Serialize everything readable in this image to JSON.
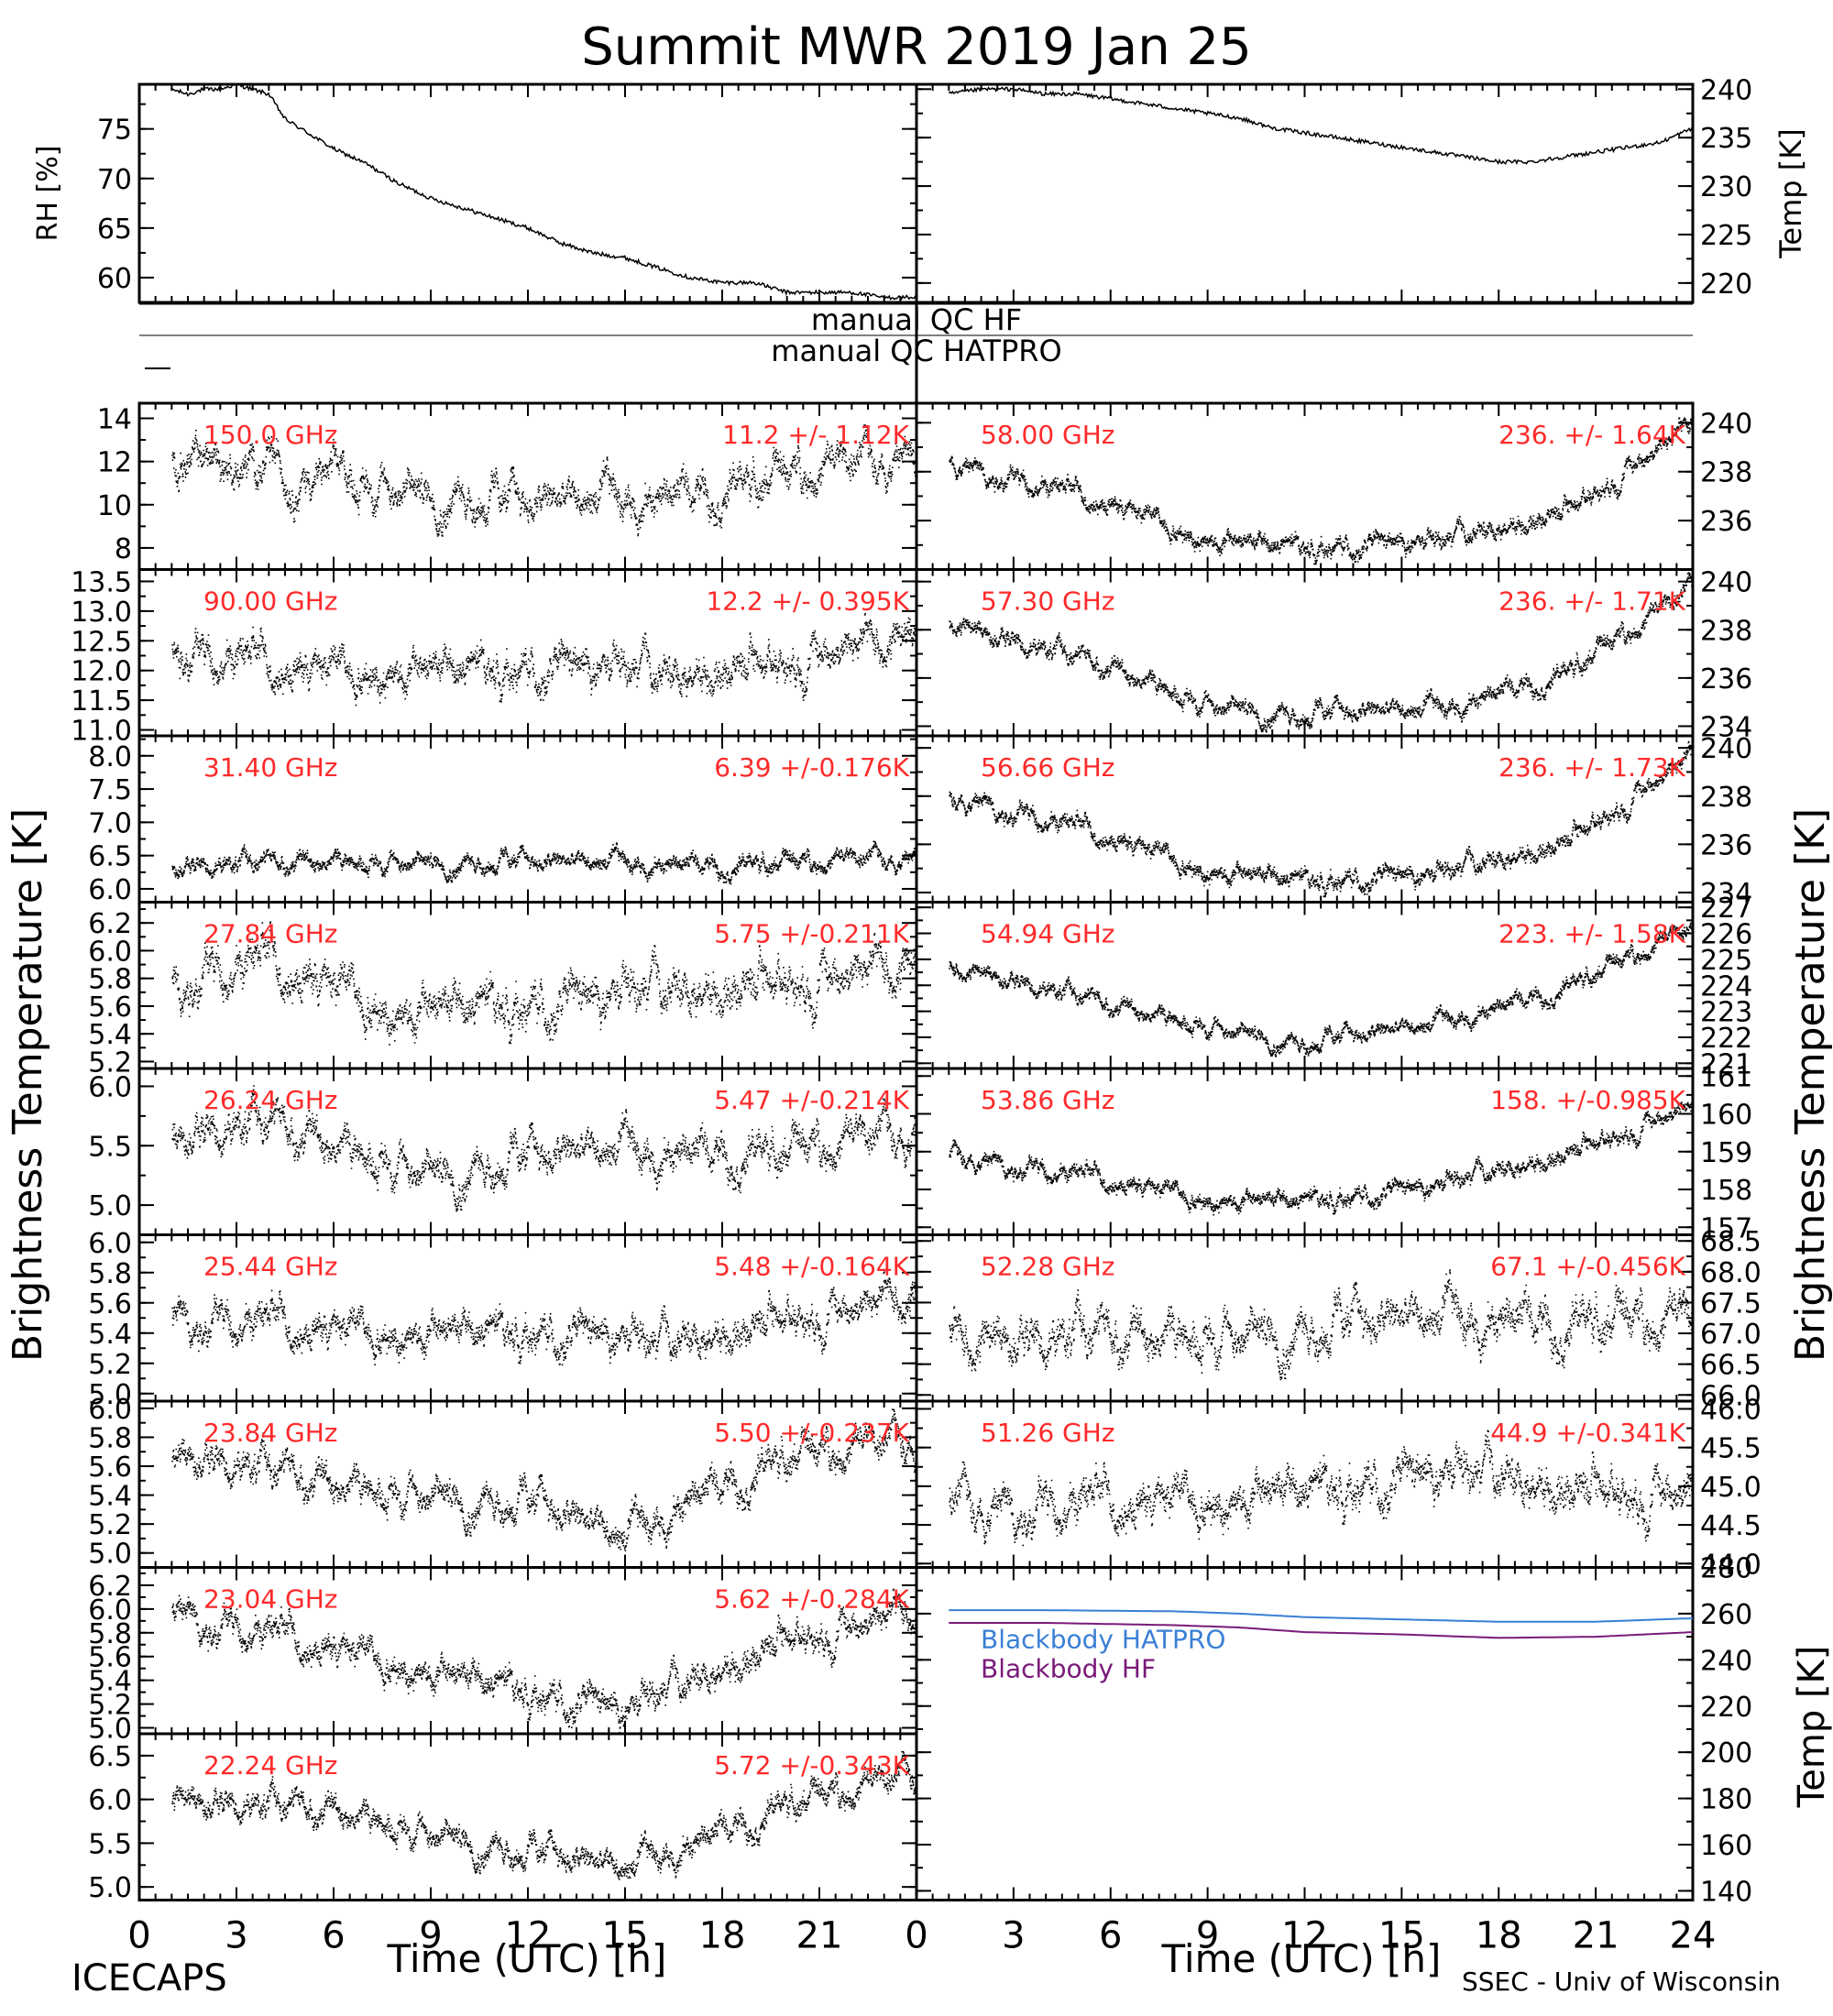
{
  "figure": {
    "title": "Summit MWR 2019 Jan 25",
    "left_ylabel": "Brightness Temperature [K]",
    "right_ylabel": "Brightness Temperature [K]",
    "xlabel": "Time (UTC) [h]",
    "footer_left": "ICECAPS",
    "footer_right": "SSEC - Univ of Wisconsin",
    "qc_hf_label": "manual QC HF",
    "qc_hatpro_label": "manual QC HATPRO",
    "x_ticks_left": [
      "0",
      "3",
      "6",
      "9",
      "12",
      "15",
      "18",
      "21"
    ],
    "x_ticks_right": [
      "0",
      "3",
      "6",
      "9",
      "12",
      "15",
      "18",
      "21",
      "24"
    ],
    "colors": {
      "axis": "#000000",
      "annotation": "#ff2a2a",
      "blackbody_hatpro": "#3a7fd6",
      "blackbody_hf": "#7a1a7a"
    }
  },
  "chart_data": [
    {
      "id": "rh",
      "type": "line",
      "ylabel": "RH [%]",
      "xlim": [
        0,
        24
      ],
      "ylim": [
        57.5,
        79.5
      ],
      "yticks": [
        60,
        65,
        70,
        75
      ],
      "x": [
        0,
        1,
        1.5,
        2,
        2.5,
        3,
        3.5,
        4,
        4.5,
        5,
        6,
        7,
        8,
        9,
        10,
        11,
        12,
        13,
        14,
        15,
        16,
        17,
        18,
        19,
        20,
        21,
        22,
        23,
        24
      ],
      "y": [
        79.5,
        79,
        78.5,
        79,
        79,
        79.5,
        79,
        78.5,
        76,
        75,
        73,
        71.5,
        69.5,
        68,
        67,
        66,
        65,
        63.5,
        62.5,
        62,
        61,
        60,
        59.5,
        59.5,
        58.5,
        58.5,
        58.5,
        58,
        58
      ]
    },
    {
      "id": "temp",
      "type": "line",
      "ylabel": "Temp [K]",
      "xlim": [
        0,
        24
      ],
      "ylim": [
        218,
        240.5
      ],
      "yticks": [
        220,
        225,
        230,
        235,
        240
      ],
      "x": [
        0,
        1,
        2,
        3,
        4,
        5,
        6,
        7,
        8,
        9,
        10,
        11,
        12,
        13,
        14,
        15,
        16,
        17,
        18,
        19,
        20,
        21,
        22,
        23,
        24
      ],
      "y": [
        239,
        239.5,
        240,
        240,
        239.5,
        239.5,
        239,
        238.5,
        238,
        237.5,
        237,
        236,
        235.5,
        235,
        234.5,
        234,
        233.5,
        233,
        232.5,
        232.5,
        233,
        233.5,
        234,
        234.5,
        236
      ]
    },
    {
      "type": "scatter",
      "id": "150",
      "side": "left",
      "channel_label": "150.0 GHz",
      "stat_label": "11.2 +/- 1.12K",
      "ylim": [
        7,
        14.7
      ],
      "yticks": [
        8,
        10,
        12,
        14
      ],
      "trend_x": [
        1,
        6,
        12,
        16,
        20,
        24
      ],
      "trend_y": [
        12.3,
        11.3,
        10,
        10.5,
        11.6,
        12.5
      ],
      "noise": 1.1
    },
    {
      "type": "scatter",
      "id": "90",
      "side": "left",
      "channel_label": "90.00 GHz",
      "stat_label": "12.2 +/- 0.395K",
      "ylim": [
        10.9,
        13.7
      ],
      "yticks": [
        11,
        11.5,
        12,
        12.5,
        13,
        13.5
      ],
      "trend_x": [
        1,
        5,
        12,
        16,
        20,
        24
      ],
      "trend_y": [
        12.4,
        12.1,
        12,
        11.9,
        12.3,
        12.6
      ],
      "noise": 0.4
    },
    {
      "type": "scatter",
      "id": "31.4",
      "side": "left",
      "channel_label": "31.40 GHz",
      "stat_label": "6.39 +/-0.176K",
      "ylim": [
        5.8,
        8.3
      ],
      "yticks": [
        6,
        6.5,
        7,
        7.5,
        8
      ],
      "trend_x": [
        1,
        6,
        12,
        18,
        24
      ],
      "trend_y": [
        6.35,
        6.45,
        6.4,
        6.4,
        6.5
      ],
      "noise": 0.17
    },
    {
      "type": "scatter",
      "id": "27.84",
      "side": "left",
      "channel_label": "27.84 GHz",
      "stat_label": "5.75 +/-0.211K",
      "ylim": [
        5.15,
        6.35
      ],
      "yticks": [
        5.2,
        5.4,
        5.6,
        5.8,
        6,
        6.2
      ],
      "trend_x": [
        1,
        4,
        8,
        14,
        20,
        24
      ],
      "trend_y": [
        5.85,
        5.95,
        5.6,
        5.6,
        5.85,
        5.9
      ],
      "noise": 0.2
    },
    {
      "type": "scatter",
      "id": "26.24",
      "side": "left",
      "channel_label": "26.24 GHz",
      "stat_label": "5.47 +/-0.214K",
      "ylim": [
        4.75,
        6.15
      ],
      "yticks": [
        5,
        5.5,
        6
      ],
      "trend_x": [
        1,
        4,
        9,
        14,
        20,
        24
      ],
      "trend_y": [
        5.6,
        5.7,
        5.3,
        5.45,
        5.5,
        5.65
      ],
      "noise": 0.2
    },
    {
      "type": "scatter",
      "id": "25.44",
      "side": "left",
      "channel_label": "25.44 GHz",
      "stat_label": "5.48 +/-0.164K",
      "ylim": [
        4.95,
        6.05
      ],
      "yticks": [
        5,
        5.2,
        5.4,
        5.6,
        5.8,
        6
      ],
      "trend_x": [
        1,
        6,
        12,
        16,
        20,
        24
      ],
      "trend_y": [
        5.55,
        5.45,
        5.4,
        5.3,
        5.55,
        5.65
      ],
      "noise": 0.15
    },
    {
      "type": "scatter",
      "id": "23.84",
      "side": "left",
      "channel_label": "23.84 GHz",
      "stat_label": "5.50 +/-0.237K",
      "ylim": [
        4.9,
        6.05
      ],
      "yticks": [
        5,
        5.2,
        5.4,
        5.6,
        5.8,
        6
      ],
      "trend_x": [
        1,
        6,
        12,
        15,
        17,
        20,
        24
      ],
      "trend_y": [
        5.7,
        5.5,
        5.35,
        5.1,
        5.4,
        5.7,
        5.8
      ],
      "noise": 0.15
    },
    {
      "type": "scatter",
      "id": "23.04",
      "side": "left",
      "channel_label": "23.04 GHz",
      "stat_label": "5.62 +/-0.284K",
      "ylim": [
        4.95,
        6.35
      ],
      "yticks": [
        5,
        5.2,
        5.4,
        5.6,
        5.8,
        6,
        6.2
      ],
      "trend_x": [
        1,
        6,
        12,
        15,
        20,
        24
      ],
      "trend_y": [
        6.0,
        5.7,
        5.3,
        5.1,
        5.8,
        6.0
      ],
      "noise": 0.17
    },
    {
      "type": "scatter",
      "id": "22.24",
      "side": "left",
      "channel_label": "22.24 GHz",
      "stat_label": "5.72 +/-0.343K",
      "ylim": [
        4.85,
        6.75
      ],
      "yticks": [
        5,
        5.5,
        6,
        6.5
      ],
      "trend_x": [
        1,
        6,
        12,
        15,
        20,
        24
      ],
      "trend_y": [
        6.0,
        5.9,
        5.4,
        5.2,
        6.0,
        6.3
      ],
      "noise": 0.2
    },
    {
      "type": "scatter",
      "id": "58",
      "side": "right",
      "channel_label": "58.00 GHz",
      "stat_label": "236. +/- 1.64K",
      "ylim": [
        234,
        240.8
      ],
      "yticks": [
        236,
        238,
        240
      ],
      "trend_x": [
        1,
        6,
        9,
        12,
        16,
        20,
        24
      ],
      "trend_y": [
        238.5,
        236.8,
        235.3,
        234.9,
        235,
        236.5,
        240
      ],
      "noise": 0.5
    },
    {
      "type": "scatter",
      "id": "57.3",
      "side": "right",
      "channel_label": "57.30 GHz",
      "stat_label": "236. +/- 1.71K",
      "ylim": [
        233.6,
        240.5
      ],
      "yticks": [
        234,
        236,
        238,
        240
      ],
      "trend_x": [
        1,
        6,
        9,
        12,
        16,
        20,
        24
      ],
      "trend_y": [
        238.3,
        236.5,
        235,
        234.5,
        234.7,
        236.3,
        239.8
      ],
      "noise": 0.5
    },
    {
      "type": "scatter",
      "id": "56.66",
      "side": "right",
      "channel_label": "56.66 GHz",
      "stat_label": "236. +/- 1.73K",
      "ylim": [
        233.6,
        240.5
      ],
      "yticks": [
        234,
        236,
        238,
        240
      ],
      "trend_x": [
        1,
        6,
        9,
        12,
        16,
        20,
        24
      ],
      "trend_y": [
        238.2,
        236.4,
        235,
        234.5,
        234.6,
        236.2,
        239.8
      ],
      "noise": 0.5
    },
    {
      "type": "scatter",
      "id": "54.94",
      "side": "right",
      "channel_label": "54.94 GHz",
      "stat_label": "223. +/- 1.58K",
      "ylim": [
        220.8,
        227.2
      ],
      "yticks": [
        221,
        222,
        223,
        224,
        225,
        226,
        227
      ],
      "trend_x": [
        1,
        6,
        9,
        12,
        16,
        20,
        24
      ],
      "trend_y": [
        224.8,
        223.3,
        222.5,
        221.8,
        222.5,
        224,
        226.3
      ],
      "noise": 0.4
    },
    {
      "type": "scatter",
      "id": "53.86",
      "side": "right",
      "channel_label": "53.86 GHz",
      "stat_label": "158. +/-0.985K",
      "ylim": [
        156.8,
        161.2
      ],
      "yticks": [
        157,
        158,
        159,
        160,
        161
      ],
      "trend_x": [
        1,
        6,
        9,
        12,
        16,
        20,
        24
      ],
      "trend_y": [
        159,
        158.3,
        157.8,
        157.7,
        158,
        159,
        160.3
      ],
      "noise": 0.3
    },
    {
      "type": "scatter",
      "id": "52.28",
      "side": "right",
      "channel_label": "52.28 GHz",
      "stat_label": "67.1 +/-0.456K",
      "ylim": [
        65.9,
        68.6
      ],
      "yticks": [
        66,
        66.5,
        67,
        67.5,
        68,
        68.5
      ],
      "trend_x": [
        1,
        6,
        12,
        18,
        24
      ],
      "trend_y": [
        66.9,
        67,
        67.1,
        67.3,
        67.3
      ],
      "noise": 0.45
    },
    {
      "type": "scatter",
      "id": "51.26",
      "side": "right",
      "channel_label": "51.26 GHz",
      "stat_label": "44.9 +/-0.341K",
      "ylim": [
        43.95,
        46.1
      ],
      "yticks": [
        44,
        44.5,
        45,
        45.5,
        46
      ],
      "trend_x": [
        1,
        6,
        12,
        18,
        24
      ],
      "trend_y": [
        44.8,
        44.85,
        44.95,
        45.1,
        45.0
      ],
      "noise": 0.35
    },
    {
      "id": "blackbody",
      "type": "line",
      "ylabel": "Temp [K]",
      "xlim": [
        0,
        24
      ],
      "ylim": [
        136,
        280
      ],
      "yticks": [
        140,
        160,
        180,
        200,
        220,
        240,
        260,
        280
      ],
      "series": [
        {
          "name": "Blackbody HATPRO",
          "x": [
            1,
            4,
            8,
            10,
            12,
            15,
            18,
            21,
            24
          ],
          "y": [
            261.5,
            261.5,
            261,
            260,
            258.5,
            257.5,
            256.5,
            256.5,
            258
          ]
        },
        {
          "name": "Blackbody HF",
          "x": [
            1,
            4,
            8,
            10,
            12,
            15,
            18,
            21,
            24
          ],
          "y": [
            256,
            256,
            255,
            254,
            252,
            251,
            249.5,
            250,
            252
          ]
        }
      ]
    }
  ]
}
